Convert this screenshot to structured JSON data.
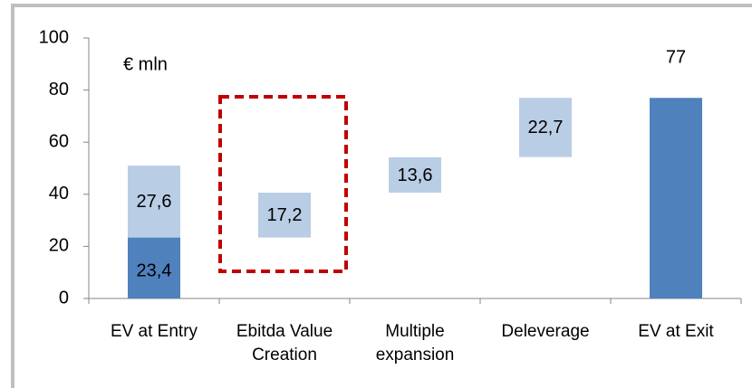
{
  "chart_data": {
    "type": "waterfall",
    "annotation": "€ mln",
    "categories": [
      "EV at Entry",
      "Ebitda Value Creation",
      "Multiple expansion",
      "Deleverage",
      "EV at Exit"
    ],
    "bases": [
      null,
      23.4,
      40.6,
      54.3,
      null
    ],
    "series": [
      {
        "color": "#4f81bd",
        "values": [
          23.4,
          null,
          null,
          null,
          77
        ]
      },
      {
        "color": "#b9cde5",
        "values": [
          27.6,
          17.2,
          13.6,
          22.7,
          null
        ]
      }
    ],
    "value_labels": [
      [
        "23,4",
        null,
        null,
        null,
        "77"
      ],
      [
        "27,6",
        "17,2",
        "13,6",
        "22,7",
        null
      ]
    ],
    "ylim": [
      0,
      100
    ],
    "yticks": [
      0,
      20,
      40,
      60,
      80,
      100
    ]
  }
}
